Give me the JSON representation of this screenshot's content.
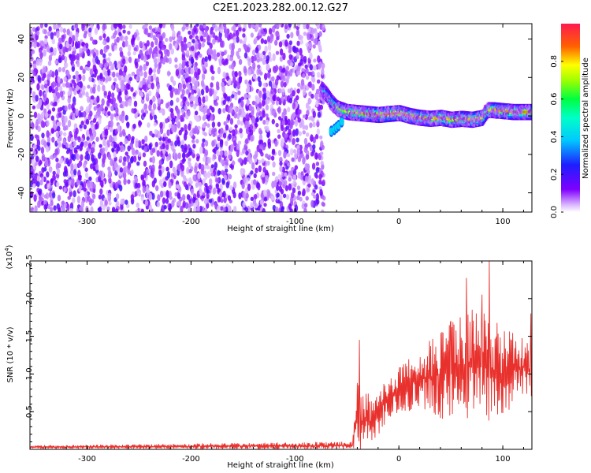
{
  "title": "C2E1.2023.282.00.12.G27",
  "chart_data": [
    {
      "type": "heatmap",
      "xlabel": "Height of straight line (km)",
      "ylabel": "Frequency (Hz)",
      "xlim": [
        -355,
        128
      ],
      "ylim": [
        -50,
        48
      ],
      "xticks": [
        -300,
        -200,
        -100,
        0,
        100
      ],
      "yticks": [
        -40,
        -20,
        0,
        20,
        40
      ],
      "grid": false,
      "colorbar": {
        "label": "Normalized spectral amplitude",
        "range": [
          0,
          1
        ],
        "ticks": [
          "0.0",
          "0.2",
          "0.4",
          "0.6",
          "0.8"
        ],
        "colormap": "rainbow (white → purple → blue → cyan → green → yellow → red)"
      },
      "noise_region": {
        "x_range": [
          -355,
          -72
        ],
        "note": "scattered low-amplitude speckle across all frequencies"
      },
      "signal_ridge": {
        "x": [
          -75,
          -70,
          -65,
          -60,
          -55,
          -50,
          -40,
          -30,
          -20,
          -10,
          0,
          10,
          20,
          30,
          40,
          50,
          60,
          70,
          80,
          85,
          90,
          100,
          110,
          120,
          128
        ],
        "y": [
          14,
          11,
          7,
          4,
          3,
          2,
          1.5,
          1,
          0.5,
          1,
          1.5,
          0,
          -1,
          -1.5,
          -1,
          -2,
          -1.5,
          -2,
          -1,
          3,
          3,
          2.5,
          2,
          2,
          2
        ],
        "amplitude": [
          0.45,
          0.5,
          0.6,
          0.7,
          0.7,
          0.75,
          0.8,
          0.85,
          0.85,
          0.9,
          0.9,
          0.85,
          0.85,
          0.8,
          0.85,
          0.8,
          0.8,
          0.85,
          0.8,
          0.8,
          0.85,
          0.85,
          0.85,
          0.85,
          0.85
        ]
      }
    },
    {
      "type": "line",
      "xlabel": "Height of straight line (km)",
      "ylabel": "SNR (10 * v/v)",
      "yscale_label": "(x10^4)",
      "xlim": [
        -355,
        128
      ],
      "ylim": [
        0,
        2.5
      ],
      "xticks": [
        -300,
        -200,
        -100,
        0,
        100
      ],
      "yticks": [
        0.5,
        1.0,
        1.5,
        2.0,
        2.5
      ],
      "grid": false,
      "series": [
        {
          "color": "#e8302c",
          "envelope_x": [
            -355,
            -45,
            -42,
            -40,
            -35,
            -30,
            -25,
            -20,
            -15,
            -10,
            -5,
            0,
            10,
            20,
            30,
            40,
            50,
            60,
            70,
            80,
            90,
            100,
            110,
            120,
            128
          ],
          "envelope_mean": [
            0.03,
            0.05,
            0.3,
            0.45,
            0.35,
            0.4,
            0.35,
            0.45,
            0.6,
            0.7,
            0.75,
            0.8,
            0.85,
            0.95,
            0.95,
            1.0,
            1.05,
            1.1,
            1.1,
            1.1,
            1.05,
            1.0,
            1.05,
            1.1,
            1.05
          ],
          "envelope_amplitude": [
            0.02,
            0.05,
            0.35,
            0.6,
            0.4,
            0.35,
            0.3,
            0.35,
            0.3,
            0.3,
            0.3,
            0.3,
            0.35,
            0.4,
            0.5,
            0.6,
            0.65,
            0.7,
            0.75,
            0.75,
            0.7,
            0.6,
            0.5,
            0.45,
            0.4
          ],
          "peaks": [
            [
              -38,
              1.45
            ],
            [
              65,
              2.27
            ],
            [
              87,
              2.5
            ],
            [
              50,
              1.7
            ],
            [
              80,
              2.05
            ],
            [
              127,
              1.8
            ]
          ]
        }
      ]
    }
  ]
}
